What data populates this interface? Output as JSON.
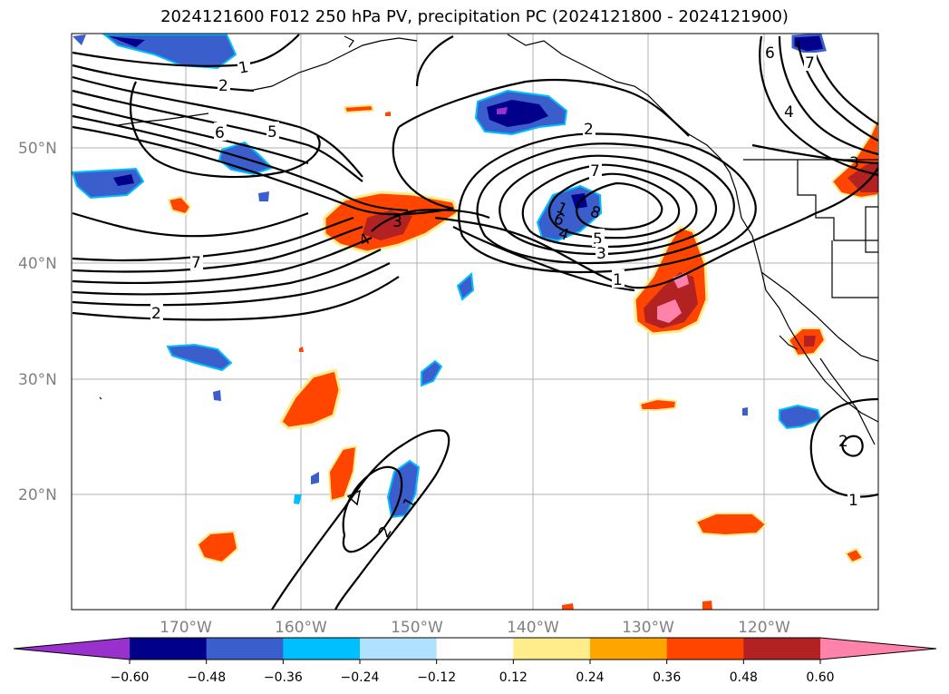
{
  "title": "2024121600 F012 250 hPa PV, precipitation PC (2024121800 - 2024121900)",
  "latitude_labels": [
    "50°N",
    "40°N",
    "30°N",
    "20°N"
  ],
  "longitude_labels": [
    "170°W",
    "160°W",
    "150°W",
    "140°W",
    "130°W",
    "120°W"
  ],
  "colorbar": {
    "tick_labels": [
      "−0.60",
      "−0.48",
      "−0.36",
      "−0.24",
      "−0.12",
      "0.12",
      "0.24",
      "0.36",
      "0.48",
      "0.60"
    ],
    "colors": [
      "#9932cc",
      "#00008b",
      "#3a5fcd",
      "#00bfff",
      "#b0e2ff",
      "#ffffff",
      "#ffec8b",
      "#ffa500",
      "#ff4500",
      "#b22222",
      "#ff82ab"
    ]
  },
  "contour_labels": [
    "1",
    "2",
    "6",
    "5",
    "7",
    "2",
    "3",
    "4",
    "2",
    "7",
    "8",
    "6",
    "4",
    "5",
    "3",
    "1",
    "6",
    "7",
    "4",
    "3",
    "2",
    "1",
    "2",
    "1",
    "1"
  ]
}
